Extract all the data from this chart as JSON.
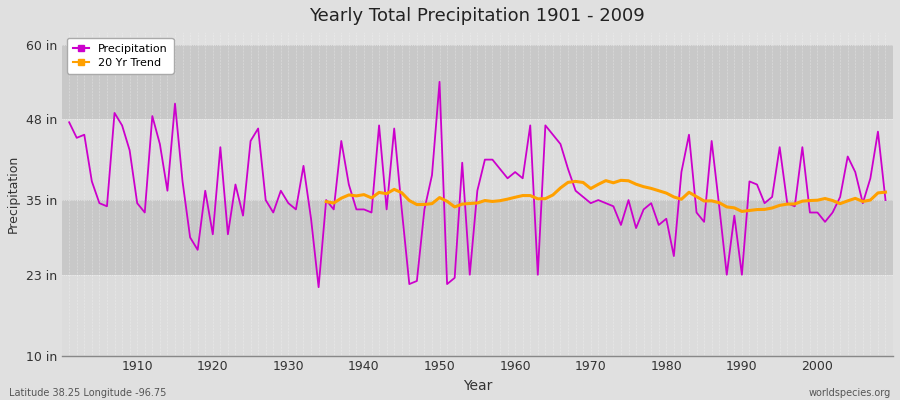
{
  "title": "Yearly Total Precipitation 1901 - 2009",
  "xlabel": "Year",
  "ylabel": "Precipitation",
  "lat_lon_label": "Latitude 38.25 Longitude -96.75",
  "source_label": "worldspecies.org",
  "ylim": [
    10,
    62
  ],
  "yticks": [
    10,
    23,
    35,
    48,
    60
  ],
  "ytick_labels": [
    "10 in",
    "23 in",
    "35 in",
    "48 in",
    "60 in"
  ],
  "xlim": [
    1900,
    2010
  ],
  "xticks": [
    1910,
    1920,
    1930,
    1940,
    1950,
    1960,
    1970,
    1980,
    1990,
    2000
  ],
  "precip_color": "#CC00CC",
  "trend_color": "#FFA000",
  "bg_color": "#E0E0E0",
  "plot_bg_light": "#DCDCDC",
  "plot_bg_dark": "#C8C8C8",
  "grid_color": "#FFFFFF",
  "years": [
    1901,
    1902,
    1903,
    1904,
    1905,
    1906,
    1907,
    1908,
    1909,
    1910,
    1911,
    1912,
    1913,
    1914,
    1915,
    1916,
    1917,
    1918,
    1919,
    1920,
    1921,
    1922,
    1923,
    1924,
    1925,
    1926,
    1927,
    1928,
    1929,
    1930,
    1931,
    1932,
    1933,
    1934,
    1935,
    1936,
    1937,
    1938,
    1939,
    1940,
    1941,
    1942,
    1943,
    1944,
    1945,
    1946,
    1947,
    1948,
    1949,
    1950,
    1951,
    1952,
    1953,
    1954,
    1955,
    1956,
    1957,
    1958,
    1959,
    1960,
    1961,
    1962,
    1963,
    1964,
    1965,
    1966,
    1967,
    1968,
    1969,
    1970,
    1971,
    1972,
    1973,
    1974,
    1975,
    1976,
    1977,
    1978,
    1979,
    1980,
    1981,
    1982,
    1983,
    1984,
    1985,
    1986,
    1987,
    1988,
    1989,
    1990,
    1991,
    1992,
    1993,
    1994,
    1995,
    1996,
    1997,
    1998,
    1999,
    2000,
    2001,
    2002,
    2003,
    2004,
    2005,
    2006,
    2007,
    2008,
    2009
  ],
  "precip": [
    47.5,
    45.0,
    45.5,
    38.0,
    34.5,
    34.0,
    49.0,
    47.0,
    43.0,
    34.5,
    33.0,
    48.5,
    44.0,
    36.5,
    50.5,
    38.0,
    29.0,
    27.0,
    36.5,
    29.5,
    43.5,
    29.5,
    37.5,
    32.5,
    44.5,
    46.5,
    35.0,
    33.0,
    36.5,
    34.5,
    33.5,
    40.5,
    32.0,
    21.0,
    35.0,
    33.5,
    44.5,
    37.5,
    33.5,
    33.5,
    33.0,
    47.0,
    33.5,
    46.5,
    33.5,
    21.5,
    22.0,
    33.5,
    39.0,
    54.0,
    21.5,
    22.5,
    41.0,
    23.0,
    36.5,
    41.5,
    41.5,
    40.0,
    38.5,
    39.5,
    38.5,
    47.0,
    23.0,
    47.0,
    45.5,
    44.0,
    40.0,
    36.5,
    35.5,
    34.5,
    35.0,
    34.5,
    34.0,
    31.0,
    35.0,
    30.5,
    33.5,
    34.5,
    31.0,
    32.0,
    26.0,
    39.5,
    45.5,
    33.0,
    31.5,
    44.5,
    34.0,
    23.0,
    32.5,
    23.0,
    38.0,
    37.5,
    34.5,
    35.5,
    43.5,
    34.5,
    34.0,
    43.5,
    33.0,
    33.0,
    31.5,
    33.0,
    35.5,
    42.0,
    39.5,
    34.5,
    38.5,
    46.0,
    35.0
  ],
  "trend_start_year": 1935,
  "trend_window": 20,
  "band_boundaries": [
    10,
    23,
    35,
    48,
    60
  ]
}
